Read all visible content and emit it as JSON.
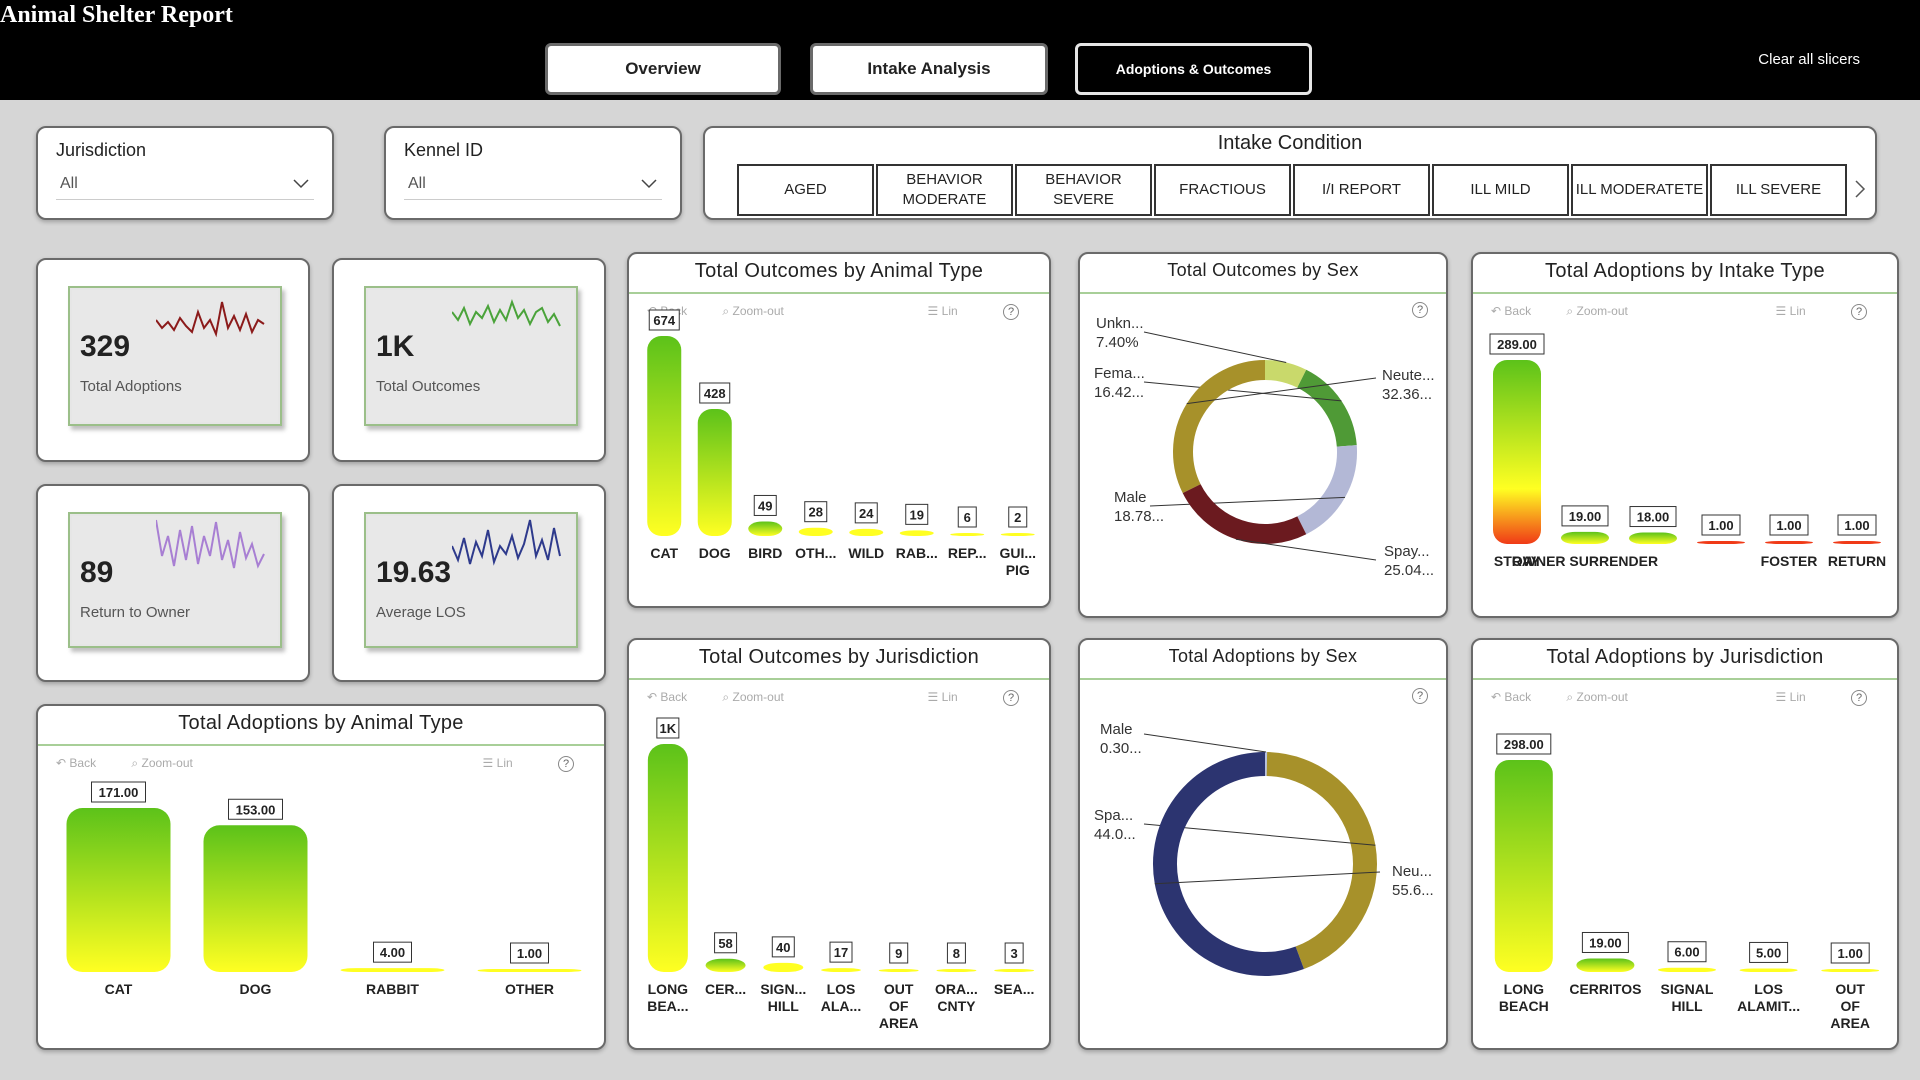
{
  "app": {
    "title": "Animal Shelter Report",
    "tabs": [
      "Overview",
      "Intake Analysis",
      "Adoptions & Outcomes"
    ],
    "active_tab": "Adoptions & Outcomes",
    "clear_slicers": "Clear all slicers"
  },
  "filters": {
    "jurisdiction": {
      "label": "Jurisdiction",
      "value": "All"
    },
    "kennel": {
      "label": "Kennel ID",
      "value": "All"
    }
  },
  "intake_condition": {
    "title": "Intake Condition",
    "options": [
      "AGED",
      "BEHAVIOR MODERATE",
      "BEHAVIOR SEVERE",
      "FRACTIOUS",
      "I/I REPORT",
      "ILL MILD",
      "ILL MODERATETE",
      "ILL SEVERE"
    ]
  },
  "kpis": [
    {
      "value": "329",
      "label": "Total Adoptions"
    },
    {
      "value": "1K",
      "label": "Total Outcomes"
    },
    {
      "value": "89",
      "label": "Return to Owner"
    },
    {
      "value": "19.63",
      "label": "Average LOS"
    }
  ],
  "toolbar": {
    "back": "Back",
    "zoom": "Zoom-out",
    "scale": "Lin",
    "help": "?"
  },
  "colors": {
    "bar_top": "#5cc21a",
    "bar_bottom": "#ffff22",
    "bar_red": "#f03a17",
    "spark1": "#8b1a1a",
    "spark2": "#4aa33a",
    "spark3": "#a87fd3",
    "spark4": "#2e3a8c",
    "title_line": "#a8cf98",
    "nav_bg": "#000000"
  },
  "chart_data": [
    {
      "id": "outcomes_by_type",
      "type": "bar",
      "title": "Total Outcomes by Animal Type",
      "categories": [
        "CAT",
        "DOG",
        "BIRD",
        "OTH...",
        "WILD",
        "RAB...",
        "REP...",
        "GUI... PIG"
      ],
      "values": [
        674,
        428,
        49,
        28,
        24,
        19,
        6,
        2
      ],
      "labels": [
        "674",
        "428",
        "49",
        "28",
        "24",
        "19",
        "6",
        "2"
      ],
      "ylim": [
        0,
        674
      ],
      "grid": false
    },
    {
      "id": "outcomes_by_sex",
      "type": "pie",
      "title": "Total Outcomes by Sex",
      "categories": [
        "Unkn...",
        "Fema...",
        "Male",
        "Spay...",
        "Neute..."
      ],
      "values": [
        7.4,
        16.42,
        18.78,
        25.04,
        32.36
      ],
      "labels": [
        "7.40%",
        "16.42...",
        "18.78...",
        "25.04...",
        "32.36..."
      ],
      "colors": [
        "#c9d96b",
        "#4f9a36",
        "#b3b8d6",
        "#6b1a1f",
        "#a7912a"
      ]
    },
    {
      "id": "adoptions_by_intake",
      "type": "bar",
      "title": "Total Adoptions by Intake Type",
      "categories": [
        "STRAY",
        "OWNER SURRENDER",
        "",
        "",
        "FOSTER",
        "RETURN"
      ],
      "values": [
        289,
        19,
        18,
        1,
        1,
        1
      ],
      "labels": [
        "289.00",
        "19.00",
        "18.00",
        "1.00",
        "1.00",
        "1.00"
      ],
      "ylim": [
        0,
        289
      ],
      "grid": false
    },
    {
      "id": "outcomes_by_jurisdiction",
      "type": "bar",
      "title": "Total Outcomes by Jurisdiction",
      "categories": [
        "LONG BEA...",
        "CER...",
        "SIGN... HILL",
        "LOS ALA...",
        "OUT OF AREA",
        "ORA... CNTY",
        "SEA..."
      ],
      "values": [
        1000,
        58,
        40,
        17,
        9,
        8,
        3
      ],
      "labels": [
        "1K",
        "58",
        "40",
        "17",
        "9",
        "8",
        "3"
      ],
      "ylim": [
        0,
        1000
      ],
      "grid": false
    },
    {
      "id": "adoptions_by_sex",
      "type": "pie",
      "title": "Total Adoptions by Sex",
      "categories": [
        "Male",
        "Spa...",
        "Neu..."
      ],
      "values": [
        0.3,
        44.0,
        55.6
      ],
      "labels": [
        "0.30...",
        "44.0...",
        "55.6..."
      ],
      "colors": [
        "#b8c1e0",
        "#a7912a",
        "#2c3470"
      ]
    },
    {
      "id": "adoptions_by_jurisdiction",
      "type": "bar",
      "title": "Total Adoptions by Jurisdiction",
      "categories": [
        "LONG BEACH",
        "CERRITOS",
        "SIGNAL HILL",
        "LOS ALAMIT...",
        "OUT OF AREA"
      ],
      "values": [
        298,
        19,
        6,
        5,
        1
      ],
      "labels": [
        "298.00",
        "19.00",
        "6.00",
        "5.00",
        "1.00"
      ],
      "ylim": [
        0,
        298
      ],
      "grid": false
    },
    {
      "id": "adoptions_by_type",
      "type": "bar",
      "title": "Total Adoptions by Animal Type",
      "categories": [
        "CAT",
        "DOG",
        "RABBIT",
        "OTHER"
      ],
      "values": [
        171,
        153,
        4,
        1
      ],
      "labels": [
        "171.00",
        "153.00",
        "4.00",
        "1.00"
      ],
      "ylim": [
        0,
        171
      ],
      "grid": false
    }
  ]
}
